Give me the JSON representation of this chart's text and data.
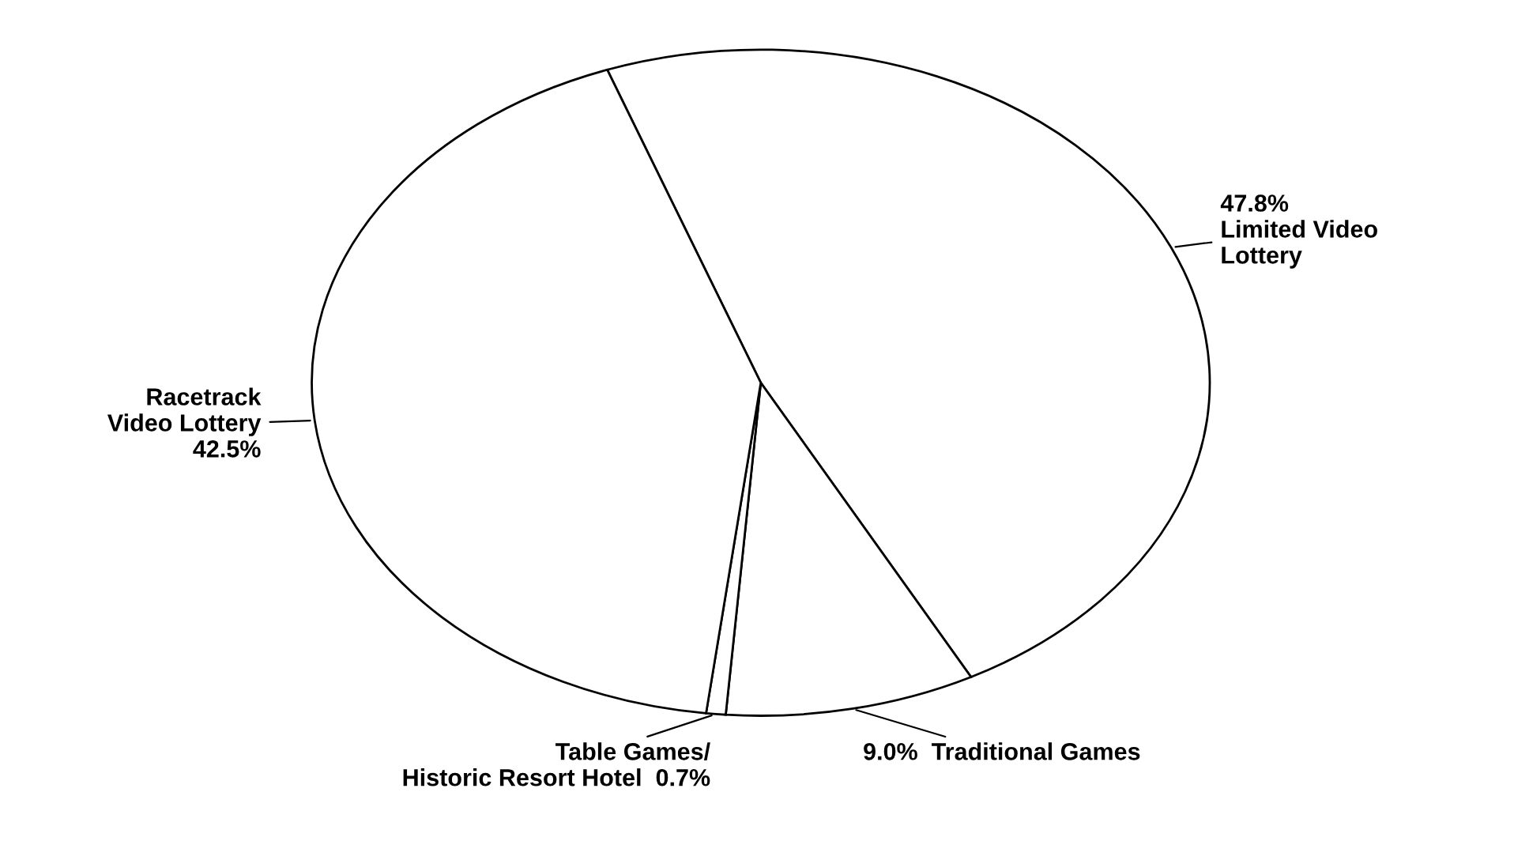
{
  "chart_data": {
    "type": "pie",
    "categories": [
      "Limited Video\nLottery",
      "Traditional Games",
      "Table Games/\nHistoric Resort Hotel",
      "Racetrack\nVideo Lottery"
    ],
    "values": [
      47.8,
      9.0,
      0.7,
      42.5
    ],
    "value_labels": [
      "47.8%",
      "9.0%",
      "0.7%",
      "42.5%"
    ],
    "colors": [
      "#ffffff",
      "#ffffff",
      "#ffffff",
      "#ffffff"
    ],
    "legend": false
  }
}
